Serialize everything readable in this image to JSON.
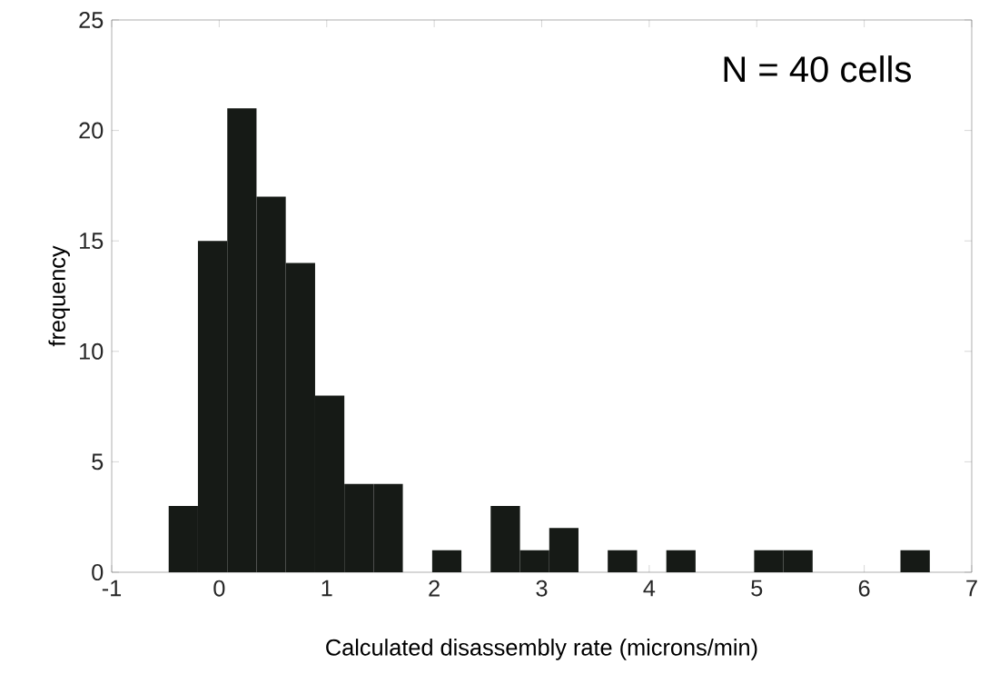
{
  "chart_data": {
    "type": "histogram",
    "xlabel": "Calculated disassembly rate (microns/min)",
    "ylabel": "frequency",
    "annotations": [
      "N = 40 cells"
    ],
    "bins": [
      -0.47,
      -0.198,
      0.075,
      0.347,
      0.619,
      0.892,
      1.164,
      1.436,
      1.708,
      1.981,
      2.253,
      2.525,
      2.798,
      3.07,
      3.342,
      3.614,
      3.887,
      4.159,
      4.431,
      4.704,
      4.976,
      5.248,
      5.52,
      5.793,
      6.065,
      6.337,
      6.61
    ],
    "values": [
      3,
      15,
      21,
      17,
      14,
      8,
      4,
      4,
      0,
      1,
      0,
      3,
      1,
      2,
      0,
      1,
      0,
      1,
      0,
      0,
      1,
      1,
      0,
      0,
      0,
      1
    ],
    "color": "#161a16",
    "xlim": [
      -1,
      7
    ],
    "xticks": [
      -1,
      0,
      1,
      2,
      3,
      4,
      5,
      6,
      7
    ],
    "ylim": [
      0,
      25
    ],
    "yticks": [
      0,
      5,
      10,
      15,
      20,
      25
    ],
    "grid": false
  }
}
